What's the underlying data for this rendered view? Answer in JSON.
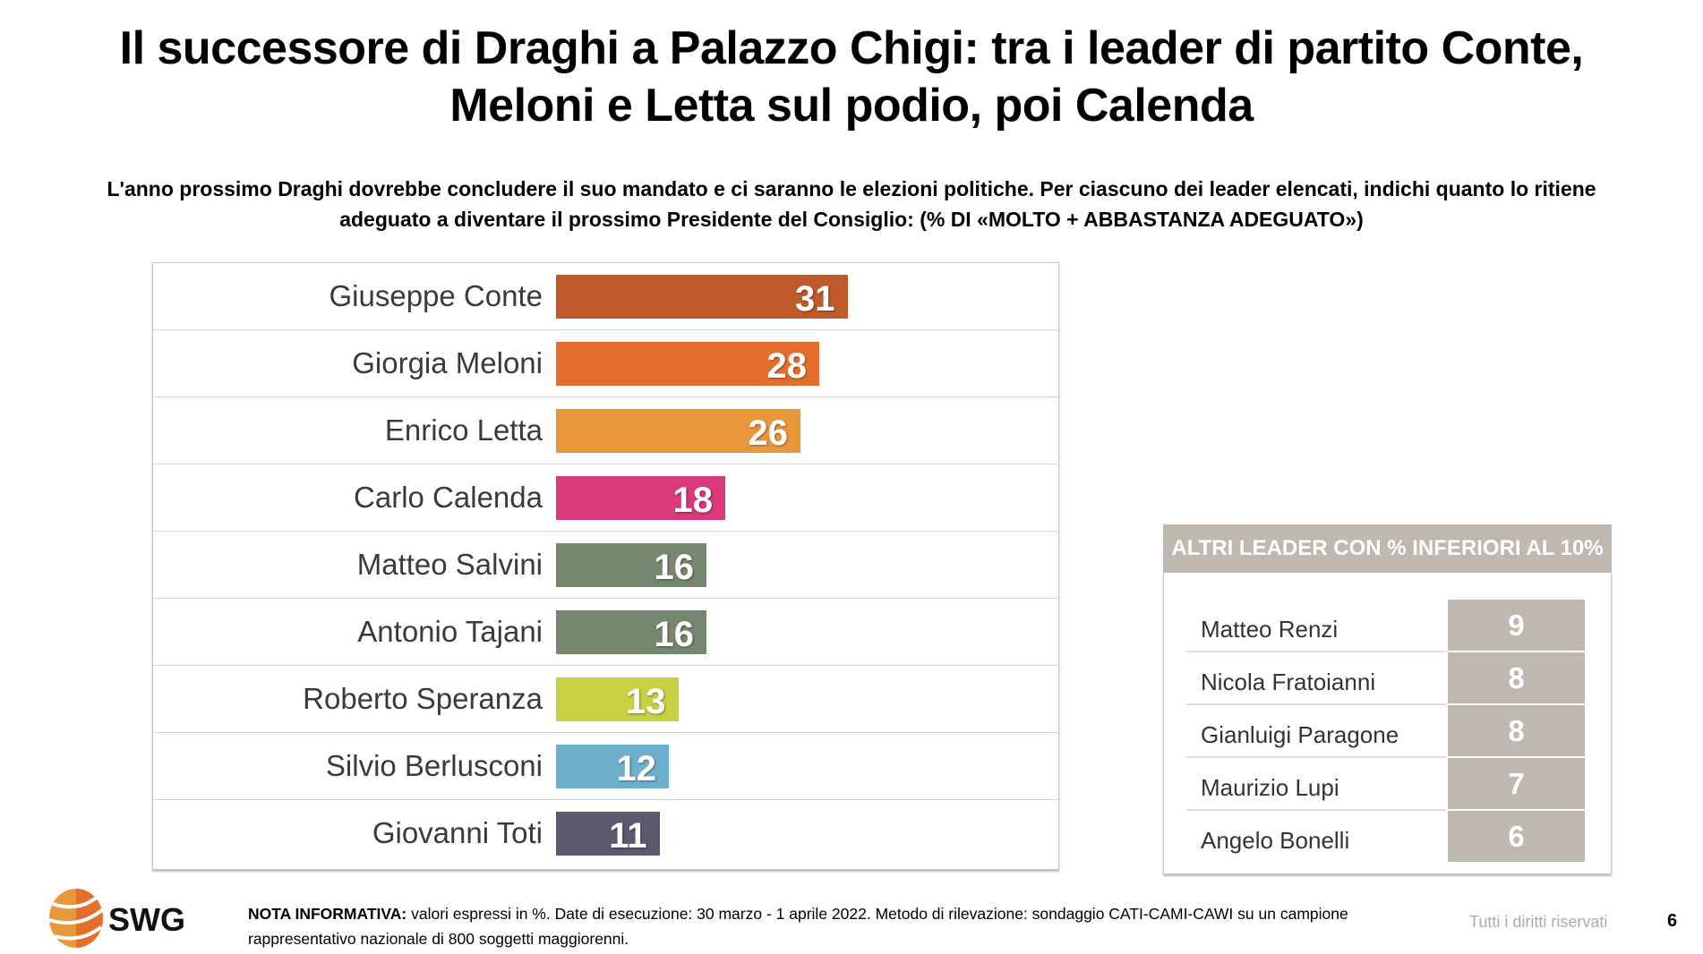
{
  "title_line1": "Il successore di Draghi a Palazzo Chigi: tra i leader di partito Conte,",
  "title_line2": "Meloni e Letta sul podio, poi Calenda",
  "subtitle_line1": "L'anno prossimo Draghi dovrebbe concludere il suo mandato e ci saranno le elezioni politiche. Per ciascuno dei leader elencati, indichi quanto lo ritiene",
  "subtitle_line2": "adeguato a diventare il prossimo Presidente del Consiglio: (% DI «MOLTO + ABBASTANZA ADEGUATO»)",
  "chart_data": {
    "type": "bar",
    "orientation": "horizontal",
    "unit": "%",
    "categories": [
      "Giuseppe Conte",
      "Giorgia Meloni",
      "Enrico Letta",
      "Carlo Calenda",
      "Matteo Salvini",
      "Antonio Tajani",
      "Roberto Speranza",
      "Silvio Berlusconi",
      "Giovanni Toti"
    ],
    "values": [
      31,
      28,
      26,
      18,
      16,
      16,
      13,
      12,
      11
    ],
    "colors": [
      "#bf5b2a",
      "#e46f2c",
      "#e8983a",
      "#d93a7a",
      "#76876f",
      "#76876f",
      "#c8d043",
      "#6eafcc",
      "#5d5870"
    ],
    "grid": false,
    "data_labels": true
  },
  "others": {
    "header": "ALTRI LEADER CON % INFERIORI AL 10%",
    "color": "#bfb8b1",
    "items": [
      {
        "name": "Matteo Renzi",
        "value": "9"
      },
      {
        "name": "Nicola Fratoianni",
        "value": "8"
      },
      {
        "name": "Gianluigi Paragone",
        "value": "8"
      },
      {
        "name": "Maurizio Lupi",
        "value": "7"
      },
      {
        "name": "Angelo Bonelli",
        "value": "6"
      }
    ]
  },
  "footer": {
    "logo_text": "SWG",
    "note_label": "NOTA INFORMATIVA:",
    "note_text": " valori espressi in %. Date di esecuzione: 30 marzo - 1 aprile 2022. Metodo di rilevazione: sondaggio CATI-CAMI-CAWI su un campione rappresentativo nazionale di 800 soggetti maggiorenni.",
    "rights": "Tutti i diritti riservati",
    "page": "6"
  }
}
